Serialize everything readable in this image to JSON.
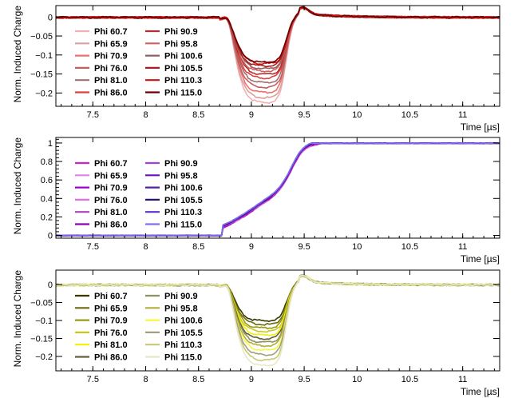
{
  "chart_data": [
    {
      "type": "line",
      "title": "",
      "xlabel": "Time [µs]",
      "ylabel": "Norm. Induced Charge",
      "xlim": [
        7.15,
        11.35
      ],
      "ylim": [
        -0.235,
        0.03
      ],
      "xticks": [
        7.5,
        8,
        8.5,
        9,
        9.5,
        10,
        10.5,
        11
      ],
      "xtick_labels": [
        "7.5",
        "8",
        "8.5",
        "9",
        "9.5",
        "10",
        "10.5",
        "11"
      ],
      "yticks": [
        0,
        -0.05,
        -0.1,
        -0.15,
        -0.2
      ],
      "ytick_labels": [
        "0",
        "−0.05",
        "−0.1",
        "−0.15",
        "−0.2"
      ],
      "grid": false,
      "legend_position": "top-left",
      "shape": "dip",
      "series": [
        {
          "name": "Phi 60.7",
          "color": "#f4b0b0",
          "min": -0.225
        },
        {
          "name": "Phi 65.9",
          "color": "#d9a0a0",
          "min": -0.212
        },
        {
          "name": "Phi 70.9",
          "color": "#f07070",
          "min": -0.198
        },
        {
          "name": "Phi 76.0",
          "color": "#c06060",
          "min": -0.185
        },
        {
          "name": "Phi 81.0",
          "color": "#a07070",
          "min": -0.172
        },
        {
          "name": "Phi 86.0",
          "color": "#e04040",
          "min": -0.16
        },
        {
          "name": "Phi 90.9",
          "color": "#b03030",
          "min": -0.15
        },
        {
          "name": "Phi 95.8",
          "color": "#d06060",
          "min": -0.142
        },
        {
          "name": "Phi 100.6",
          "color": "#906060",
          "min": -0.135
        },
        {
          "name": "Phi 105.5",
          "color": "#a02020",
          "min": -0.128
        },
        {
          "name": "Phi 110.3",
          "color": "#d01010",
          "min": -0.122
        },
        {
          "name": "Phi 115.0",
          "color": "#6a0000",
          "min": -0.118
        }
      ]
    },
    {
      "type": "line",
      "title": "",
      "xlabel": "Time [µs]",
      "ylabel": "Norm. Induced Charge",
      "xlim": [
        7.15,
        11.35
      ],
      "ylim": [
        -0.03,
        1.06
      ],
      "xticks": [
        7.5,
        8,
        8.5,
        9,
        9.5,
        10,
        10.5,
        11
      ],
      "xtick_labels": [
        "7.5",
        "8",
        "8.5",
        "9",
        "9.5",
        "10",
        "10.5",
        "11"
      ],
      "yticks": [
        0,
        0.2,
        0.4,
        0.6,
        0.8,
        1
      ],
      "ytick_labels": [
        "0",
        "0.2",
        "0.4",
        "0.6",
        "0.8",
        "1"
      ],
      "grid": false,
      "legend_position": "top-left",
      "shape": "rise",
      "series": [
        {
          "name": "Phi 60.7",
          "color": "#d020d0",
          "min": 0
        },
        {
          "name": "Phi 65.9",
          "color": "#e080e8",
          "min": 0
        },
        {
          "name": "Phi 70.9",
          "color": "#a000d0",
          "min": 0
        },
        {
          "name": "Phi 76.0",
          "color": "#e070e0",
          "min": 0
        },
        {
          "name": "Phi 81.0",
          "color": "#b040c0",
          "min": 0
        },
        {
          "name": "Phi 86.0",
          "color": "#9000b0",
          "min": 0
        },
        {
          "name": "Phi 90.9",
          "color": "#a040e0",
          "min": 0
        },
        {
          "name": "Phi 95.8",
          "color": "#7010b0",
          "min": 0
        },
        {
          "name": "Phi 100.6",
          "color": "#5020a0",
          "min": 0
        },
        {
          "name": "Phi 105.5",
          "color": "#301070",
          "min": 0
        },
        {
          "name": "Phi 110.3",
          "color": "#6030c8",
          "min": 0
        },
        {
          "name": "Phi 115.0",
          "color": "#8070f0",
          "min": 0
        }
      ]
    },
    {
      "type": "line",
      "title": "",
      "xlabel": "Time [µs]",
      "ylabel": "Norm. Induced Charge",
      "xlim": [
        7.15,
        11.35
      ],
      "ylim": [
        -0.24,
        0.04
      ],
      "xticks": [
        7.5,
        8,
        8.5,
        9,
        9.5,
        10,
        10.5,
        11
      ],
      "xtick_labels": [
        "7.5",
        "8",
        "8.5",
        "9",
        "9.5",
        "10",
        "10.5",
        "11"
      ],
      "yticks": [
        0,
        -0.05,
        -0.1,
        -0.15,
        -0.2
      ],
      "ytick_labels": [
        "0",
        "−0.05",
        "−0.1",
        "−0.15",
        "−0.2"
      ],
      "grid": false,
      "legend_position": "top-left",
      "shape": "dip",
      "series": [
        {
          "name": "Phi 60.7",
          "color": "#3a3a00",
          "min": -0.1
        },
        {
          "name": "Phi 65.9",
          "color": "#6a6a10",
          "min": -0.11
        },
        {
          "name": "Phi 70.9",
          "color": "#9a9a10",
          "min": -0.12
        },
        {
          "name": "Phi 76.0",
          "color": "#c8c820",
          "min": -0.13
        },
        {
          "name": "Phi 81.0",
          "color": "#f0f000",
          "min": -0.14
        },
        {
          "name": "Phi 86.0",
          "color": "#606040",
          "min": -0.15
        },
        {
          "name": "Phi 90.9",
          "color": "#909060",
          "min": -0.16
        },
        {
          "name": "Phi 95.8",
          "color": "#b0b040",
          "min": -0.17
        },
        {
          "name": "Phi 100.6",
          "color": "#f8f840",
          "min": -0.182
        },
        {
          "name": "Phi 105.5",
          "color": "#a0a080",
          "min": -0.195
        },
        {
          "name": "Phi 110.3",
          "color": "#c8c878",
          "min": -0.21
        },
        {
          "name": "Phi 115.0",
          "color": "#e8e8c8",
          "min": -0.225
        }
      ]
    }
  ]
}
